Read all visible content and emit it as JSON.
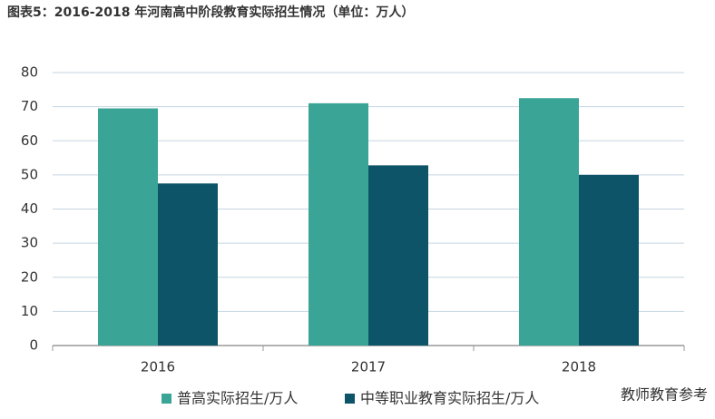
{
  "chart_data": {
    "type": "bar",
    "title": "图表5：2016-2018 年河南高中阶段教育实际招生情况（单位：万人）",
    "categories": [
      "2016",
      "2017",
      "2018"
    ],
    "series": [
      {
        "name": "普高实际招生/万人",
        "color": "#3aa596",
        "values": [
          69.5,
          71,
          72.5
        ]
      },
      {
        "name": "中等职业教育实际招生/万人",
        "color": "#0e5468",
        "values": [
          47.5,
          52.8,
          50
        ]
      }
    ],
    "ylim": [
      0,
      80
    ],
    "yticks": [
      0,
      10,
      20,
      30,
      40,
      50,
      60,
      70,
      80
    ],
    "grid": true,
    "legend": "bottom",
    "watermark": "教师教育参考"
  }
}
